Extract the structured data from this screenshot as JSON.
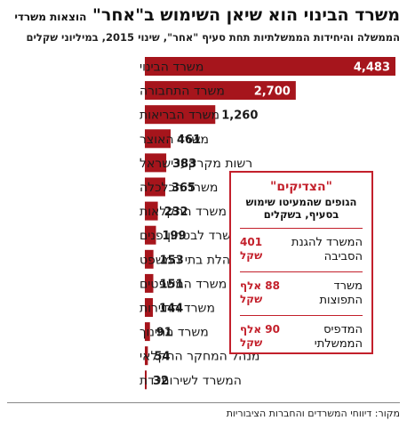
{
  "header": {
    "title": "משרד הבינוי הוא שיאן השימוש ב\"אחר\"",
    "title_suffix": "הוצאות משרדי",
    "subtitle": "הממשלה והיחידות הממשלתיות תחת סעיף \"אחר\", שינוי 2015, במיליוני שקלים"
  },
  "colors": {
    "bar": "#a6151c",
    "accent": "#c3202b",
    "text": "#1a1a1a"
  },
  "chart_data": {
    "type": "bar",
    "orientation": "horizontal",
    "title": "משרד הבינוי הוא שיאן השימוש ב\"אחר\"",
    "categories": [
      "משרד הבינוי",
      "משרד התחבורה",
      "משרד הבריאות",
      "משרד האוצר",
      "רשות מקרקעי ישראל",
      "משרד הכלכלה",
      "משרד החקלאות",
      "משרד לבטחון פנים",
      "הנהלת בתי המשפט",
      "משרד המשפטים",
      "משרד התיירות",
      "משרד החינוך",
      "מנהל המחקר החקלאי",
      "המשרד לשירותי דת"
    ],
    "values": [
      4483,
      2700,
      1260,
      461,
      383,
      365,
      232,
      199,
      153,
      151,
      144,
      91,
      54,
      32
    ],
    "value_labels": [
      "4,483",
      "2,700",
      "1,260",
      "461",
      "383",
      "365",
      "232",
      "199",
      "153",
      "151",
      "144",
      "91",
      "54",
      "32"
    ],
    "legend": "none",
    "grid": false
  },
  "box": {
    "title": "\"הצדיקים\"",
    "description": "הגופים שהמעיטו שימוש בסעיף, בשקלים",
    "items": [
      {
        "name": "המשרד להגנת הסביבה",
        "amount": "401 שקל"
      },
      {
        "name": "משרד התפוצות",
        "amount": "88 אלף שקל"
      },
      {
        "name": "המדפיס הממשלתי",
        "amount": "90 אלף שקל"
      }
    ]
  },
  "source": "מקור: דיווחי המשרדים והחברות הציבוריות"
}
